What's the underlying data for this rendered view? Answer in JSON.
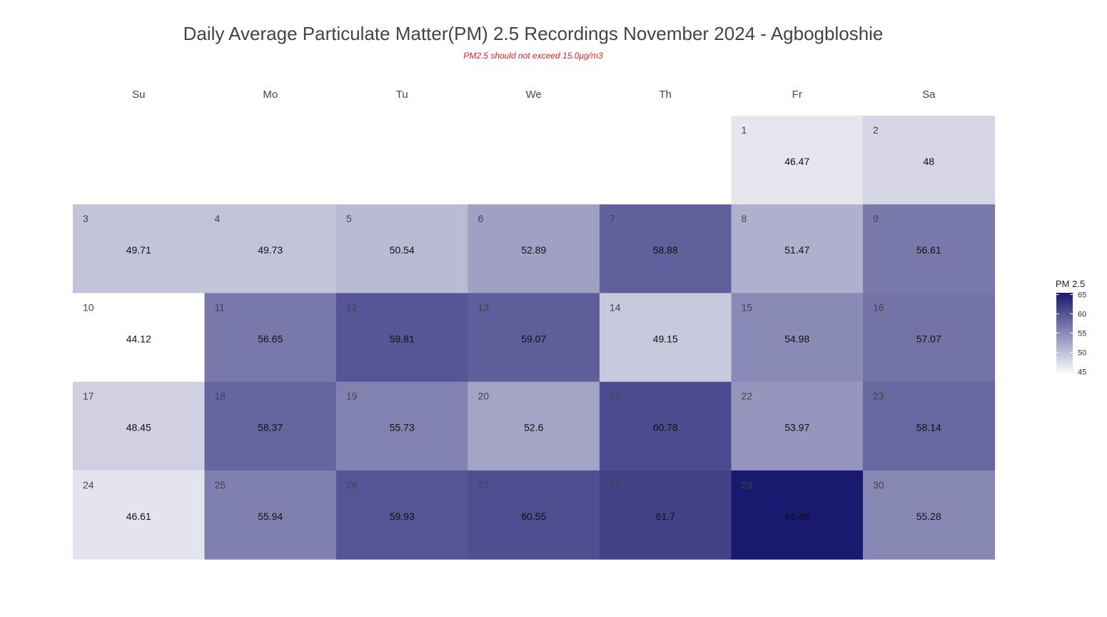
{
  "title": "Daily Average Particulate Matter(PM) 2.5 Recordings November 2024 -  Agbogbloshie",
  "subtitle": "PM2.5 should not exceed 15.0μg/m3",
  "chart_data": {
    "type": "heatmap",
    "layout": "calendar",
    "month": "November 2024",
    "weekdays": [
      "Su",
      "Mo",
      "Tu",
      "We",
      "Th",
      "Fr",
      "Sa"
    ],
    "first_weekday_index": 5,
    "days": [
      1,
      2,
      3,
      4,
      5,
      6,
      7,
      8,
      9,
      10,
      11,
      12,
      13,
      14,
      15,
      16,
      17,
      18,
      19,
      20,
      21,
      22,
      23,
      24,
      25,
      26,
      27,
      28,
      29,
      30
    ],
    "day_labels": [
      "1",
      "2",
      "3",
      "4",
      "5",
      "6",
      "7",
      "8",
      "9",
      "10",
      "11",
      "12",
      "13",
      "14",
      "15",
      "16",
      "17",
      "18",
      "19",
      "20",
      "21",
      "22",
      "23",
      "24",
      "25",
      "26",
      "27",
      "28",
      "29",
      "30"
    ],
    "values": [
      46.47,
      48,
      49.71,
      49.73,
      50.54,
      52.89,
      58.88,
      51.47,
      56.61,
      44.12,
      56.65,
      59.81,
      59.07,
      49.15,
      54.98,
      57.07,
      48.45,
      58.37,
      55.73,
      52.6,
      60.78,
      53.97,
      58.14,
      46.61,
      55.94,
      59.93,
      60.55,
      61.7,
      65.46,
      55.28
    ],
    "value_labels": [
      "46.47",
      "48",
      "49.71",
      "49.73",
      "50.54",
      "52.89",
      "58.88",
      "51.47",
      "56.61",
      "44.12",
      "56.65",
      "59.81",
      "59.07",
      "49.15",
      "54.98",
      "57.07",
      "48.45",
      "58.37",
      "55.73",
      "52.6",
      "60.78",
      "53.97",
      "58.14",
      "46.61",
      "55.94",
      "59.93",
      "60.55",
      "61.7",
      "65.46",
      "55.28"
    ],
    "legend": {
      "title": "PM 2.5",
      "ticks": [
        45,
        50,
        55,
        60,
        65
      ],
      "tick_labels": [
        "45",
        "50",
        "55",
        "60",
        "65"
      ],
      "range": [
        44.12,
        65.46
      ],
      "placement": "right"
    },
    "color_low": "#ffffff",
    "color_high": "#191970"
  }
}
